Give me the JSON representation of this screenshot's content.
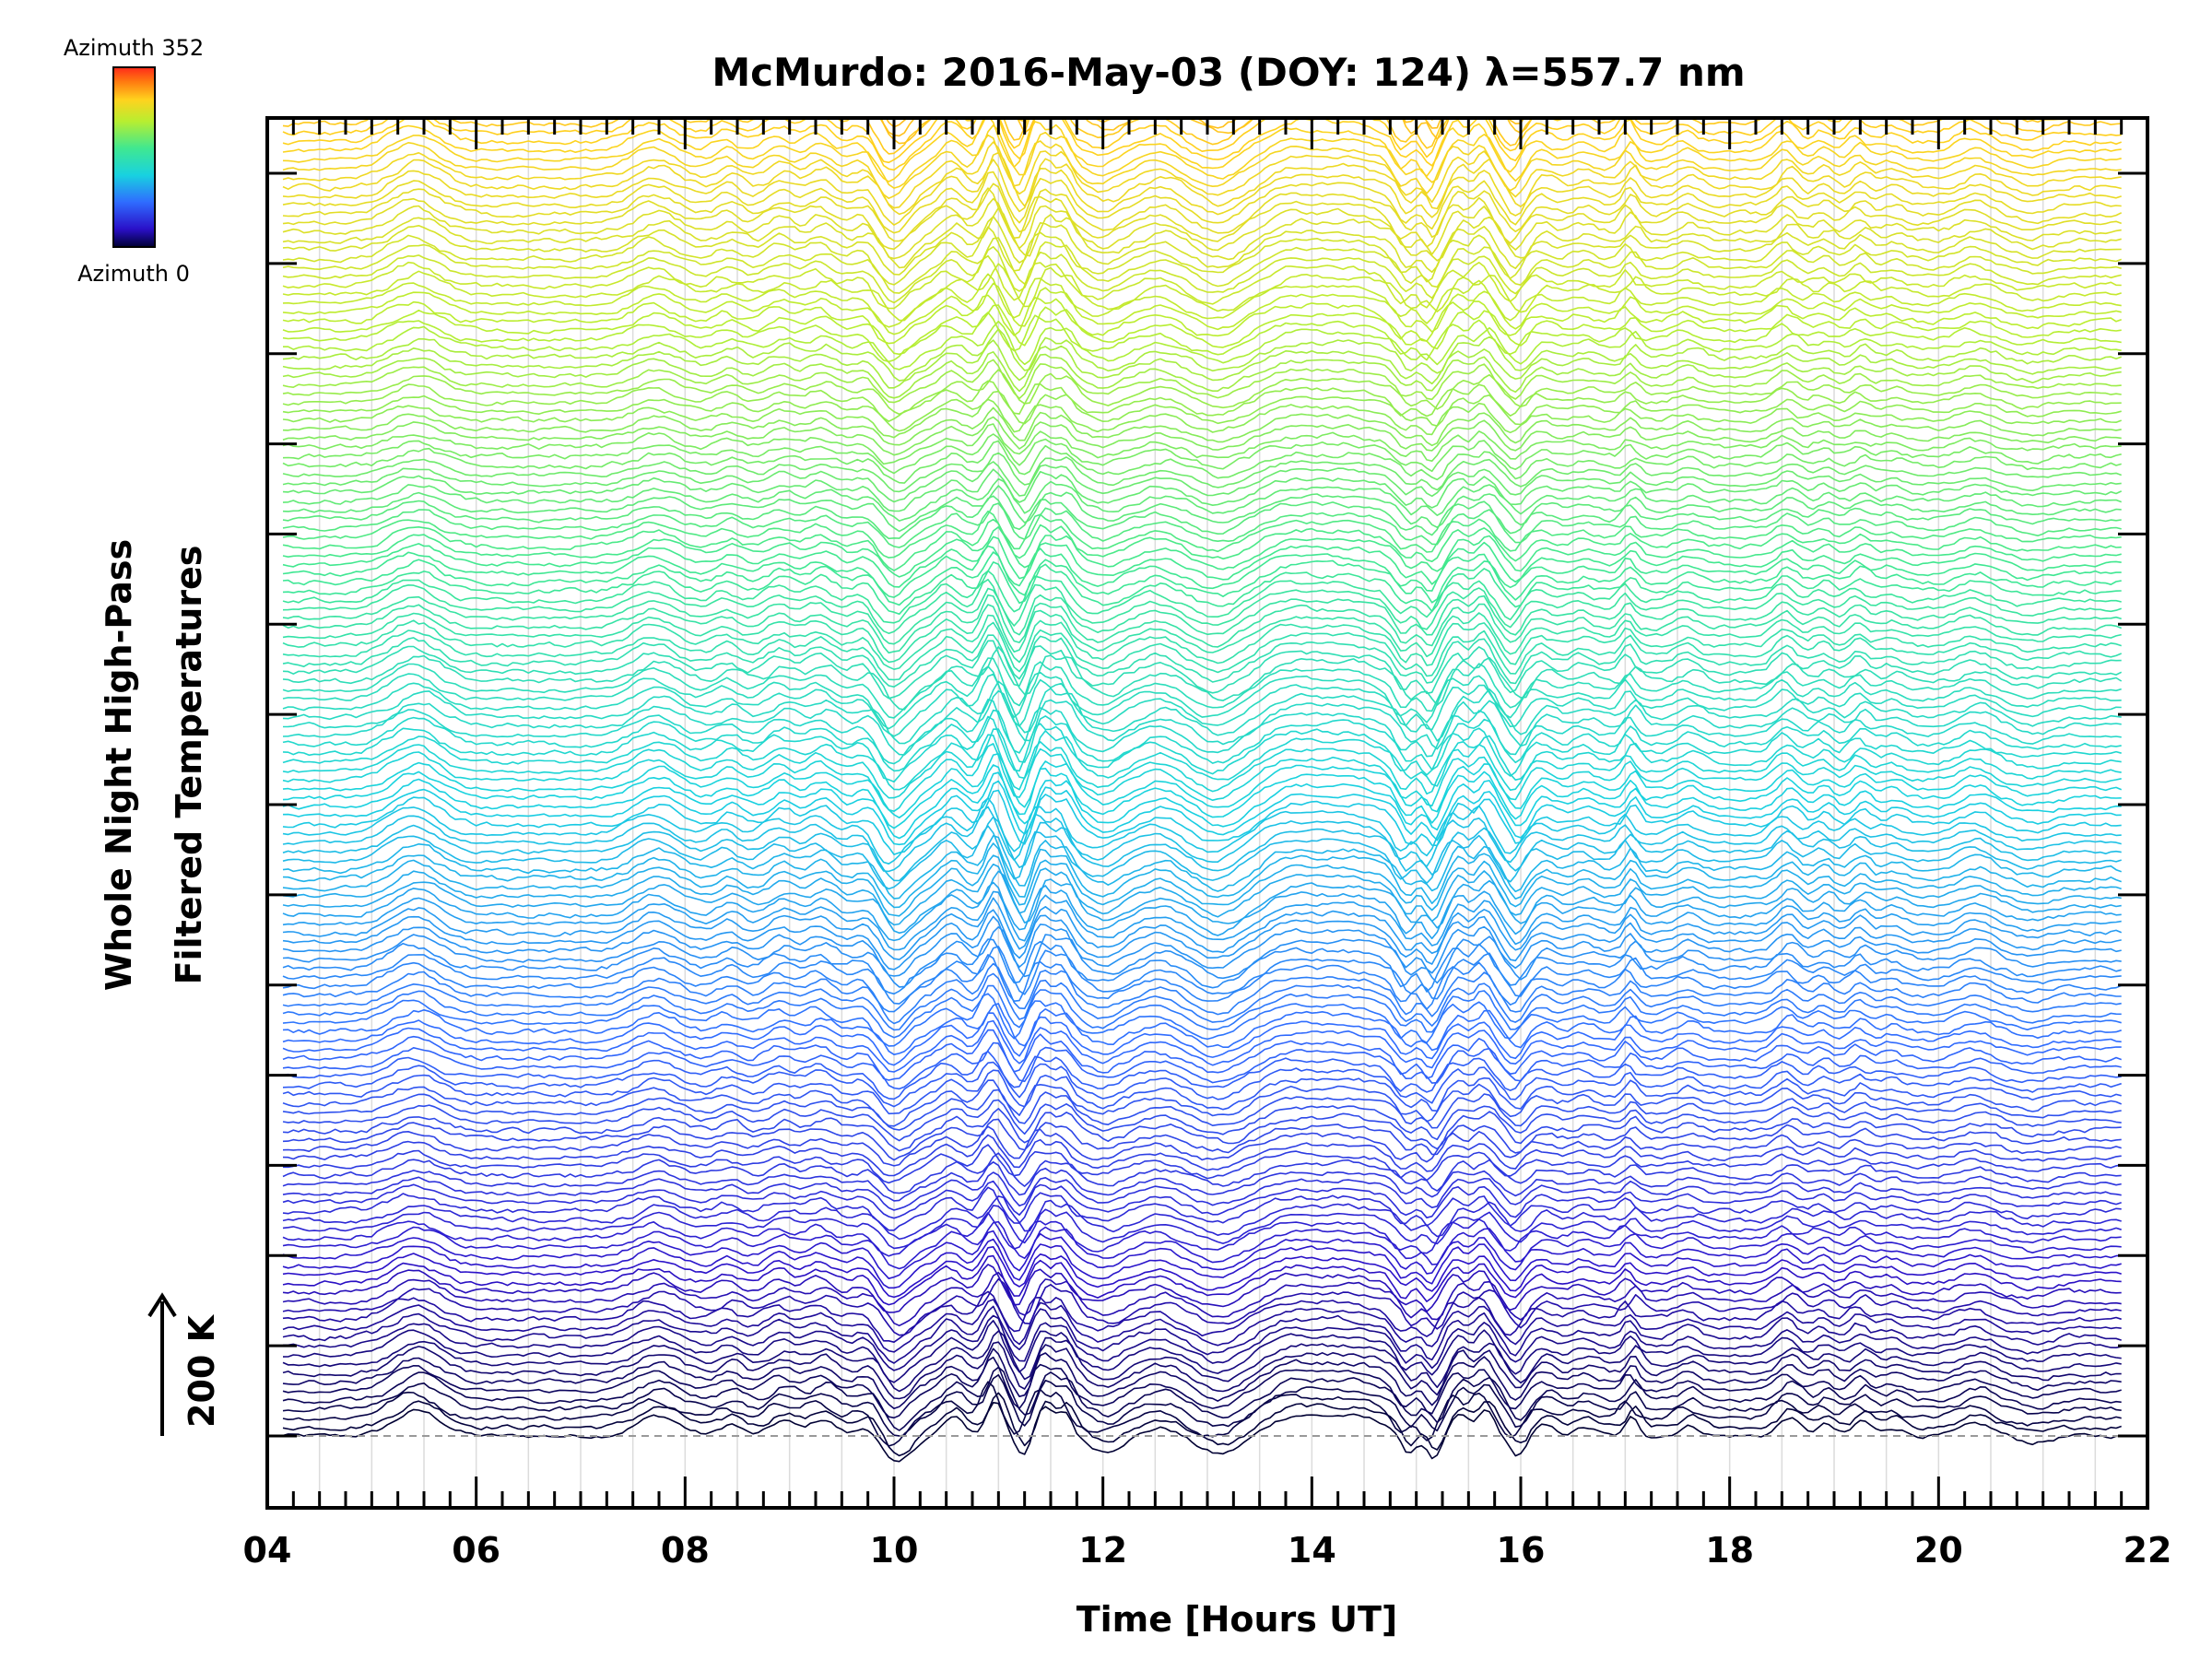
{
  "chart_data": {
    "type": "line",
    "title": "McMurdo: 2016-May-03 (DOY: 124) λ=557.7 nm",
    "xlabel": "Time [Hours UT]",
    "ylabel_line1": "Whole Night High-Pass",
    "ylabel_line2": "Filtered Temperatures",
    "scale_bar_label": "200 K",
    "xlim": [
      4,
      22
    ],
    "x_tick_labels": [
      "04",
      "06",
      "08",
      "10",
      "12",
      "14",
      "16",
      "18",
      "20",
      "22"
    ],
    "x_minor_step_hours": 0.25,
    "x_grid_step_hours": 0.5,
    "y_major_tick_count": 15,
    "colorbar": {
      "top_label": "Azimuth 352",
      "bottom_label": "Azimuth 0",
      "azimuth_range": [
        0,
        352
      ],
      "colormap": "rainbow"
    },
    "series_count": 176,
    "series_azimuth_step_deg": 2,
    "series_offset_k": 26,
    "time_range_hours": [
      4.15,
      21.75
    ],
    "sample_step_hours": 0.05,
    "common_features": [
      {
        "t": 5.42,
        "amp": 75,
        "w": 0.22
      },
      {
        "t": 7.72,
        "amp": 60,
        "w": 0.2
      },
      {
        "t": 8.42,
        "amp": 35,
        "w": 0.1
      },
      {
        "t": 8.92,
        "amp": 45,
        "w": 0.12
      },
      {
        "t": 9.3,
        "amp": 50,
        "w": 0.12
      },
      {
        "t": 9.75,
        "amp": 35,
        "w": 0.1
      },
      {
        "t": 10.0,
        "amp": -85,
        "w": 0.14
      },
      {
        "t": 10.55,
        "amp": 55,
        "w": 0.1
      },
      {
        "t": 10.95,
        "amp": 105,
        "w": 0.08
      },
      {
        "t": 11.22,
        "amp": -55,
        "w": 0.07
      },
      {
        "t": 11.42,
        "amp": 85,
        "w": 0.08
      },
      {
        "t": 11.62,
        "amp": 70,
        "w": 0.07
      },
      {
        "t": 12.0,
        "amp": -45,
        "w": 0.15
      },
      {
        "t": 12.55,
        "amp": 25,
        "w": 0.15
      },
      {
        "t": 13.1,
        "amp": -55,
        "w": 0.2
      },
      {
        "t": 13.75,
        "amp": 35,
        "w": 0.2
      },
      {
        "t": 14.3,
        "amp": 60,
        "w": 0.4
      },
      {
        "t": 14.9,
        "amp": -70,
        "w": 0.08
      },
      {
        "t": 15.15,
        "amp": -75,
        "w": 0.07
      },
      {
        "t": 15.4,
        "amp": 60,
        "w": 0.08
      },
      {
        "t": 15.65,
        "amp": 75,
        "w": 0.08
      },
      {
        "t": 15.95,
        "amp": -60,
        "w": 0.08
      },
      {
        "t": 16.2,
        "amp": 30,
        "w": 0.1
      },
      {
        "t": 16.6,
        "amp": 25,
        "w": 0.1
      },
      {
        "t": 17.05,
        "amp": 55,
        "w": 0.06
      },
      {
        "t": 17.6,
        "amp": 30,
        "w": 0.1
      },
      {
        "t": 18.55,
        "amp": 55,
        "w": 0.1
      },
      {
        "t": 18.9,
        "amp": 35,
        "w": 0.08
      },
      {
        "t": 19.25,
        "amp": 45,
        "w": 0.08
      },
      {
        "t": 19.55,
        "amp": 25,
        "w": 0.1
      },
      {
        "t": 20.35,
        "amp": 35,
        "w": 0.15
      },
      {
        "t": 20.9,
        "amp": -20,
        "w": 0.15
      }
    ]
  }
}
